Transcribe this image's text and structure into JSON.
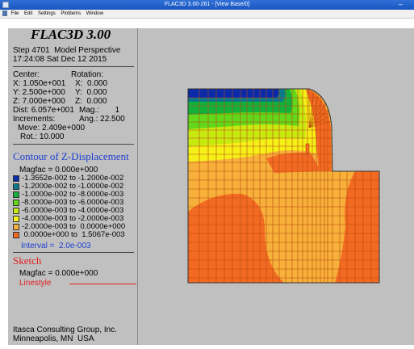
{
  "window": {
    "title": "FLAC3D 3.00-261 - [View Base/0]",
    "min_glyph": "–"
  },
  "menu": {
    "items": [
      "File",
      "Edit",
      "Settings",
      "Plotitems",
      "Window"
    ]
  },
  "panel": {
    "app_title": "FLAC3D 3.00",
    "step_line": "Step 4701  Model Perspective",
    "date_line": "17:24:08 Sat Dec 12 2015",
    "view": {
      "center_label": "Center:",
      "rotation_label": "Rotation:",
      "rows": [
        {
          "left": "X: 1.050e+001",
          "right": "X:  0.000"
        },
        {
          "left": "Y: 2.500e+000",
          "right": "Y:  0.000"
        },
        {
          "left": "Z: 7.000e+000",
          "right": "Z:  0.000"
        }
      ],
      "dist": "Dist: 6.057e+001",
      "mag": "Mag.:       1",
      "increments": "Increments:",
      "ang": "Ang.: 22.500",
      "move": "Move: 2.409e+000",
      "rot": "Rot.: 10.000"
    },
    "contour": {
      "title": "Contour of Z-Displacement",
      "magfac": "Magfac = 0.000e+000",
      "entries": [
        {
          "color": "#0a2aa8",
          "label": "-1.3552e-002 to -1.2000e-002"
        },
        {
          "color": "#0a7a8a",
          "label": "-1.2000e-002 to -1.0000e-002"
        },
        {
          "color": "#13b13a",
          "label": "-1.0000e-002 to -8.0000e-003"
        },
        {
          "color": "#62d81a",
          "label": "-8.0000e-003 to -6.0000e-003"
        },
        {
          "color": "#c8ea10",
          "label": "-6.0000e-003 to -4.0000e-003"
        },
        {
          "color": "#f5f018",
          "label": "-4.0000e-003 to -2.0000e-003"
        },
        {
          "color": "#f7b03a",
          "label": "-2.0000e-003 to  0.0000e+000"
        },
        {
          "color": "#f36a22",
          "label": " 0.0000e+000 to  1.5067e-003"
        }
      ],
      "interval": "Interval =  2.0e-003"
    },
    "sketch": {
      "title": "Sketch",
      "magfac": "Magfac = 0.000e+000",
      "linestyle": "Linestyle"
    },
    "footer": [
      "Itasca Consulting Group, Inc.",
      "Minneapolis, MN  USA"
    ]
  },
  "model": {
    "colors": {
      "blue": "#0a2aa8",
      "teal": "#0a7a8a",
      "green": "#13b13a",
      "lightgreen": "#62d81a",
      "yellowgreen": "#c8ea10",
      "yellow": "#f5f018",
      "lightorange": "#f7b03a",
      "orange": "#f36a22",
      "grid": "#b84a0e",
      "frame": "#333333",
      "background": "#c0c0c0"
    }
  }
}
